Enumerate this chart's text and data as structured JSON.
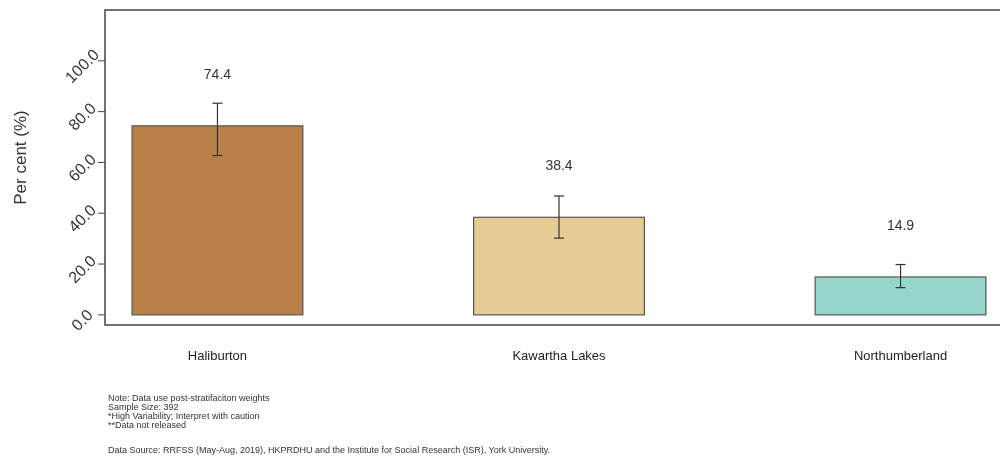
{
  "chart_data": {
    "type": "bar",
    "ylabel": "Per cent (%)",
    "categories": [
      "Haliburton",
      "Kawartha Lakes",
      "Northumberland"
    ],
    "values": [
      74.4,
      38.4,
      14.9
    ],
    "colors": [
      "#b87f47",
      "#e5cc95",
      "#96d7cd"
    ],
    "errors": [
      [
        62.7,
        83.3
      ],
      [
        30.2,
        46.8
      ],
      [
        10.7,
        19.8
      ]
    ],
    "data_labels": true,
    "ylim": [
      -4,
      120
    ],
    "yticks": [
      {
        "value": 0,
        "label": "0.0"
      },
      {
        "value": 20,
        "label": "20.0"
      },
      {
        "value": 40,
        "label": "40.0"
      },
      {
        "value": 60,
        "label": "60.0"
      },
      {
        "value": 80,
        "label": "80.0"
      },
      {
        "value": 100,
        "label": "100.0"
      }
    ],
    "grid": false,
    "annotations": [
      "Note: Data use post-stratifaciton weights",
      "Sample Size: 392",
      "*High Variability; Interpret with caution",
      "**Data not released",
      "Data Source: RRFSS (May-Aug, 2019), HKPRDHU and the Institute for Social Research (ISR), York University."
    ]
  }
}
